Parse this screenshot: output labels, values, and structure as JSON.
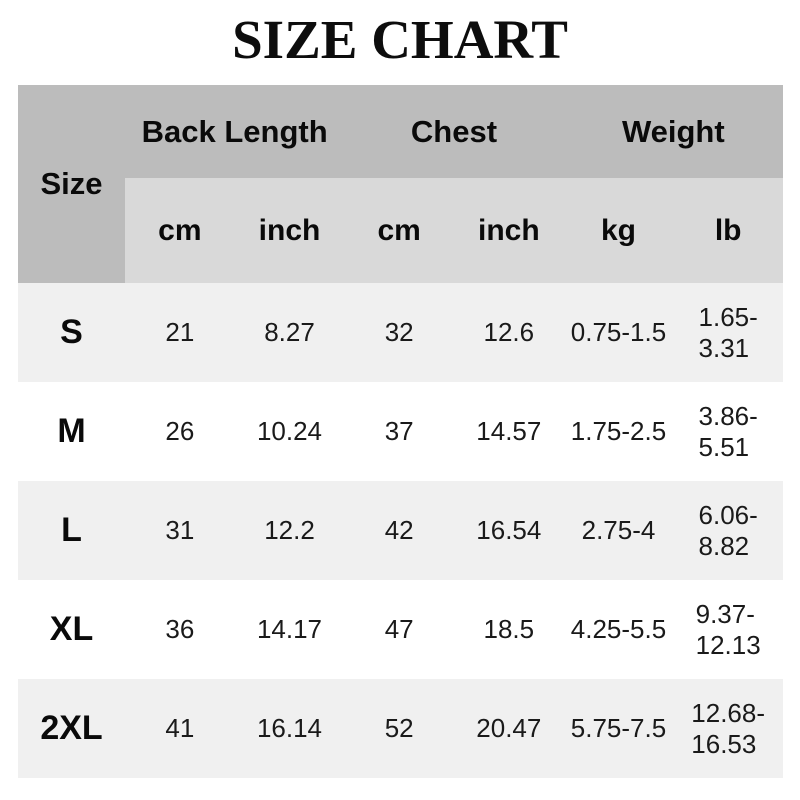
{
  "title": "SIZE CHART",
  "colors": {
    "header_dark_gray": "#bcbcbc",
    "header_light_gray": "#d9d9d9",
    "row_alt_gray": "#f0f0f0",
    "row_white": "#ffffff",
    "text": "#111111",
    "background": "#ffffff"
  },
  "table": {
    "size_header": "Size",
    "groups": [
      {
        "label": "Back Length"
      },
      {
        "label": "Chest"
      },
      {
        "label": "Weight"
      }
    ],
    "units": [
      "cm",
      "inch",
      "cm",
      "inch",
      "kg",
      "lb"
    ],
    "rows": [
      {
        "size": "S",
        "cells": [
          "21",
          "8.27",
          "32",
          "12.6",
          "0.75-1.5",
          "1.65-\n3.31"
        ]
      },
      {
        "size": "M",
        "cells": [
          "26",
          "10.24",
          "37",
          "14.57",
          "1.75-2.5",
          "3.86-\n5.51"
        ]
      },
      {
        "size": "L",
        "cells": [
          "31",
          "12.2",
          "42",
          "16.54",
          "2.75-4",
          "6.06-\n8.82"
        ]
      },
      {
        "size": "XL",
        "cells": [
          "36",
          "14.17",
          "47",
          "18.5",
          "4.25-5.5",
          "9.37-\n12.13"
        ]
      },
      {
        "size": "2XL",
        "cells": [
          "41",
          "16.14",
          "52",
          "20.47",
          "5.75-7.5",
          "12.68-\n16.53"
        ]
      }
    ]
  }
}
